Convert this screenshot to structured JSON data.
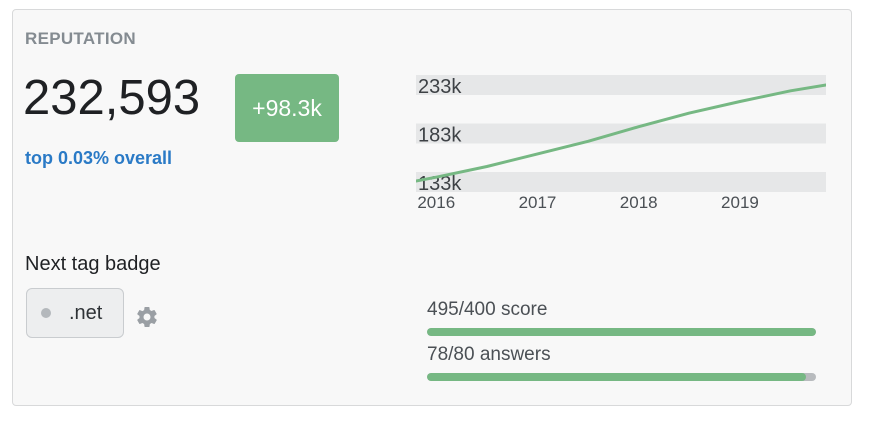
{
  "reputation": {
    "heading": "REPUTATION",
    "value": "232,593",
    "change": "+98.3k",
    "rank_text": "top 0.03% overall"
  },
  "chart_data": {
    "type": "line",
    "x": [
      2015.8,
      2016.0,
      2016.5,
      2017.0,
      2017.5,
      2018.0,
      2018.5,
      2019.0,
      2019.5,
      2019.85
    ],
    "series": [
      {
        "values": [
          134000,
          138000,
          149000,
          162000,
          175000,
          190000,
          204000,
          216000,
          227000,
          233000
        ]
      }
    ],
    "x_ticks": [
      {
        "value": 2016,
        "label": "2016"
      },
      {
        "value": 2017,
        "label": "2017"
      },
      {
        "value": 2018,
        "label": "2018"
      },
      {
        "value": 2019,
        "label": "2019"
      }
    ],
    "y_ticks": [
      {
        "value": 233000,
        "label": "233k"
      },
      {
        "value": 183000,
        "label": "183k"
      },
      {
        "value": 133000,
        "label": "133k"
      }
    ],
    "xlim": [
      2015.8,
      2019.85
    ],
    "ylim": [
      133000,
      233000
    ],
    "grid": true,
    "line_color": "#76b883",
    "band_color": "#e6e7e8"
  },
  "next_badge": {
    "title": "Next tag badge",
    "tag": ".net",
    "progress": [
      {
        "label": "495/400 score",
        "fraction": 1.0
      },
      {
        "label": "78/80 answers",
        "fraction": 0.975
      }
    ]
  },
  "colors": {
    "accent_green": "#76b883",
    "link_blue": "#2a7ac6"
  }
}
